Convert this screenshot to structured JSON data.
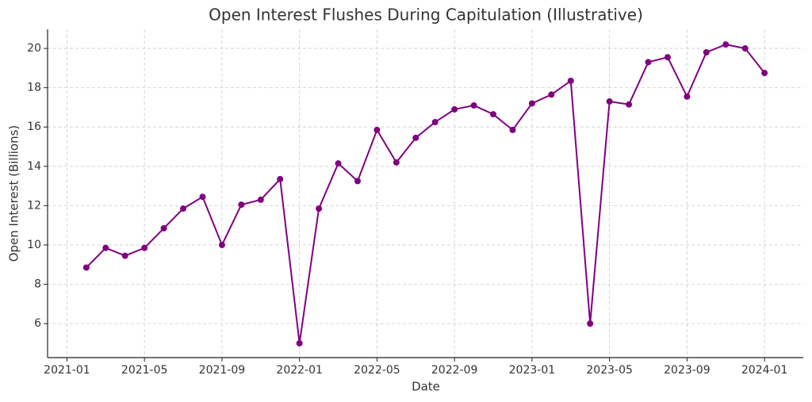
{
  "chart_data": {
    "type": "line",
    "title": "Open Interest Flushes During Capitulation (Illustrative)",
    "x_label": "Date",
    "y_label": "Open Interest (Billions)",
    "x": [
      "2021-02",
      "2021-03",
      "2021-04",
      "2021-05",
      "2021-06",
      "2021-07",
      "2021-08",
      "2021-09",
      "2021-10",
      "2021-11",
      "2021-12",
      "2022-01",
      "2022-02",
      "2022-03",
      "2022-04",
      "2022-05",
      "2022-06",
      "2022-07",
      "2022-08",
      "2022-09",
      "2022-10",
      "2022-11",
      "2022-12",
      "2023-01",
      "2023-02",
      "2023-03",
      "2023-04",
      "2023-05",
      "2023-06",
      "2023-07",
      "2023-08",
      "2023-09",
      "2023-10",
      "2023-11",
      "2023-12",
      "2024-01"
    ],
    "series": [
      {
        "name": "Open Interest",
        "color": "#800080",
        "values": [
          8.85,
          9.85,
          9.45,
          9.85,
          10.85,
          11.85,
          12.45,
          10.0,
          12.05,
          12.3,
          13.35,
          5.0,
          11.85,
          14.15,
          13.25,
          15.85,
          14.2,
          15.45,
          16.25,
          16.9,
          17.1,
          16.65,
          15.85,
          17.2,
          17.65,
          18.35,
          6.0,
          17.3,
          17.15,
          19.3,
          19.55,
          17.55,
          19.8,
          20.2,
          20.0,
          18.75
        ]
      }
    ],
    "xlim": [
      "2020-12",
      "2024-03"
    ],
    "xticks": [
      "2021-01",
      "2021-05",
      "2021-09",
      "2022-01",
      "2022-05",
      "2022-09",
      "2023-01",
      "2023-05",
      "2023-09",
      "2024-01"
    ],
    "ylim": [
      4.27,
      20.97
    ],
    "yticks": [
      6,
      8,
      10,
      12,
      14,
      16,
      18,
      20
    ],
    "grid": true
  }
}
